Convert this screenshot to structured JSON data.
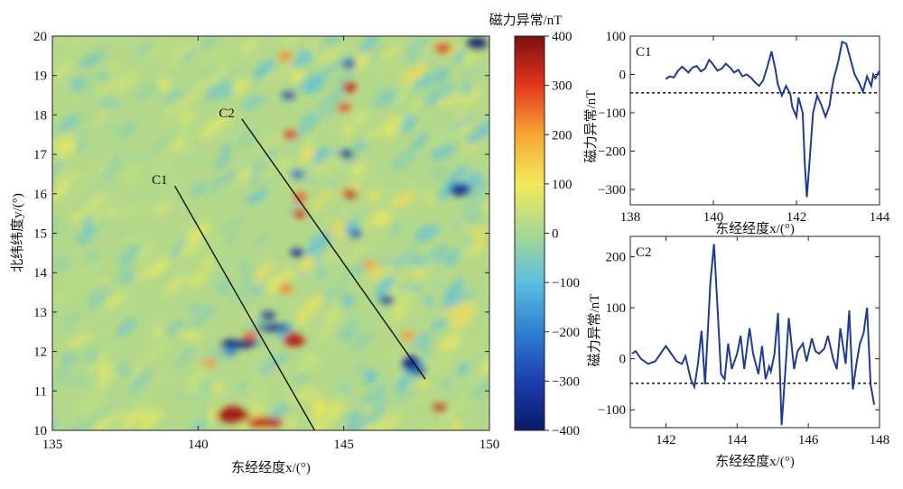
{
  "chart_data": [
    {
      "type": "heatmap",
      "xlabel": "东经经度x/(°)",
      "ylabel": "北纬纬度y/(°)",
      "xlim": [
        135,
        150
      ],
      "ylim": [
        10,
        20
      ],
      "xticks": [
        "135",
        "140",
        "145",
        "150"
      ],
      "yticks": [
        "10",
        "11",
        "12",
        "13",
        "14",
        "15",
        "16",
        "17",
        "18",
        "19",
        "20"
      ],
      "colorbar": {
        "title": "磁力异常/nT",
        "range": [
          -400,
          400
        ],
        "ticks": [
          "400",
          "300",
          "200",
          "100",
          "0",
          "−100",
          "−200",
          "−300",
          "−400"
        ],
        "stops": [
          {
            "v": -400,
            "color": "#0a1a6e"
          },
          {
            "v": -300,
            "color": "#1c3fae"
          },
          {
            "v": -200,
            "color": "#2f7fd0"
          },
          {
            "v": -100,
            "color": "#5bbfe0"
          },
          {
            "v": 0,
            "color": "#a8d890"
          },
          {
            "v": 100,
            "color": "#f2ea5a"
          },
          {
            "v": 200,
            "color": "#f7a733"
          },
          {
            "v": 300,
            "color": "#e2361d"
          },
          {
            "v": 400,
            "color": "#7e0f10"
          }
        ]
      },
      "profiles": [
        {
          "name": "C1",
          "start": [
            139.2,
            16.2
          ],
          "end": [
            144.0,
            10.0
          ]
        },
        {
          "name": "C2",
          "start": [
            141.5,
            17.9
          ],
          "end": [
            147.8,
            11.3
          ]
        }
      ]
    },
    {
      "type": "line",
      "title": "C1",
      "xlabel": "东经经度x/(°)",
      "ylabel": "磁力异常/nT",
      "xlim": [
        138,
        144
      ],
      "ylim": [
        -340,
        100
      ],
      "xticks": [
        138,
        140,
        142,
        144
      ],
      "yticks": [
        100,
        0,
        -100,
        -200,
        -300
      ],
      "reference_line": -48,
      "x": [
        138.85,
        138.95,
        139.05,
        139.15,
        139.25,
        139.4,
        139.5,
        139.6,
        139.7,
        139.8,
        139.9,
        140.0,
        140.1,
        140.2,
        140.3,
        140.4,
        140.5,
        140.6,
        140.7,
        140.8,
        140.9,
        141.0,
        141.1,
        141.2,
        141.3,
        141.4,
        141.5,
        141.55,
        141.65,
        141.75,
        141.85,
        141.9,
        142.0,
        142.05,
        142.15,
        142.2,
        142.25,
        142.3,
        142.4,
        142.5,
        142.6,
        142.7,
        142.8,
        142.85,
        142.9,
        143.0,
        143.1,
        143.2,
        143.3,
        143.4,
        143.5,
        143.6,
        143.7,
        143.8,
        143.85,
        143.9,
        144.0
      ],
      "y": [
        -12,
        -5,
        -8,
        10,
        20,
        5,
        18,
        22,
        8,
        15,
        38,
        25,
        10,
        15,
        28,
        18,
        5,
        12,
        -5,
        0,
        -8,
        -20,
        -30,
        -15,
        20,
        60,
        10,
        -25,
        -55,
        -30,
        -50,
        -85,
        -110,
        -60,
        -100,
        -230,
        -320,
        -250,
        -100,
        -55,
        -80,
        -110,
        -80,
        -40,
        -10,
        30,
        85,
        80,
        40,
        0,
        -20,
        -45,
        -5,
        -30,
        0,
        -10,
        10
      ]
    },
    {
      "type": "line",
      "title": "C2",
      "xlabel": "东经经度x/(°)",
      "ylabel": "磁力异常/nT",
      "xlim": [
        141,
        148
      ],
      "ylim": [
        -135,
        240
      ],
      "xticks": [
        142,
        144,
        146,
        148
      ],
      "yticks": [
        200,
        100,
        0,
        -100
      ],
      "reference_line": -48,
      "x": [
        141.05,
        141.15,
        141.3,
        141.5,
        141.7,
        141.85,
        142.0,
        142.15,
        142.3,
        142.45,
        142.55,
        142.7,
        142.8,
        142.9,
        143.0,
        143.1,
        143.25,
        143.35,
        143.45,
        143.55,
        143.65,
        143.75,
        143.85,
        144.0,
        144.1,
        144.2,
        144.35,
        144.45,
        144.6,
        144.7,
        144.8,
        144.9,
        144.95,
        145.05,
        145.15,
        145.25,
        145.35,
        145.45,
        145.6,
        145.7,
        145.85,
        145.95,
        146.1,
        146.2,
        146.3,
        146.45,
        146.55,
        146.7,
        146.8,
        146.9,
        147.05,
        147.15,
        147.25,
        147.35,
        147.45,
        147.55,
        147.65,
        147.75,
        147.85
      ],
      "y": [
        10,
        15,
        0,
        -10,
        -5,
        10,
        25,
        10,
        -5,
        -10,
        5,
        -40,
        -55,
        -10,
        55,
        -50,
        150,
        225,
        100,
        -30,
        -40,
        30,
        -20,
        10,
        45,
        -20,
        60,
        10,
        -30,
        25,
        -40,
        -15,
        -25,
        10,
        90,
        -130,
        -30,
        80,
        -20,
        15,
        30,
        -5,
        40,
        15,
        10,
        20,
        45,
        0,
        -20,
        60,
        -10,
        95,
        -60,
        -10,
        30,
        50,
        100,
        -50,
        -90
      ]
    }
  ]
}
